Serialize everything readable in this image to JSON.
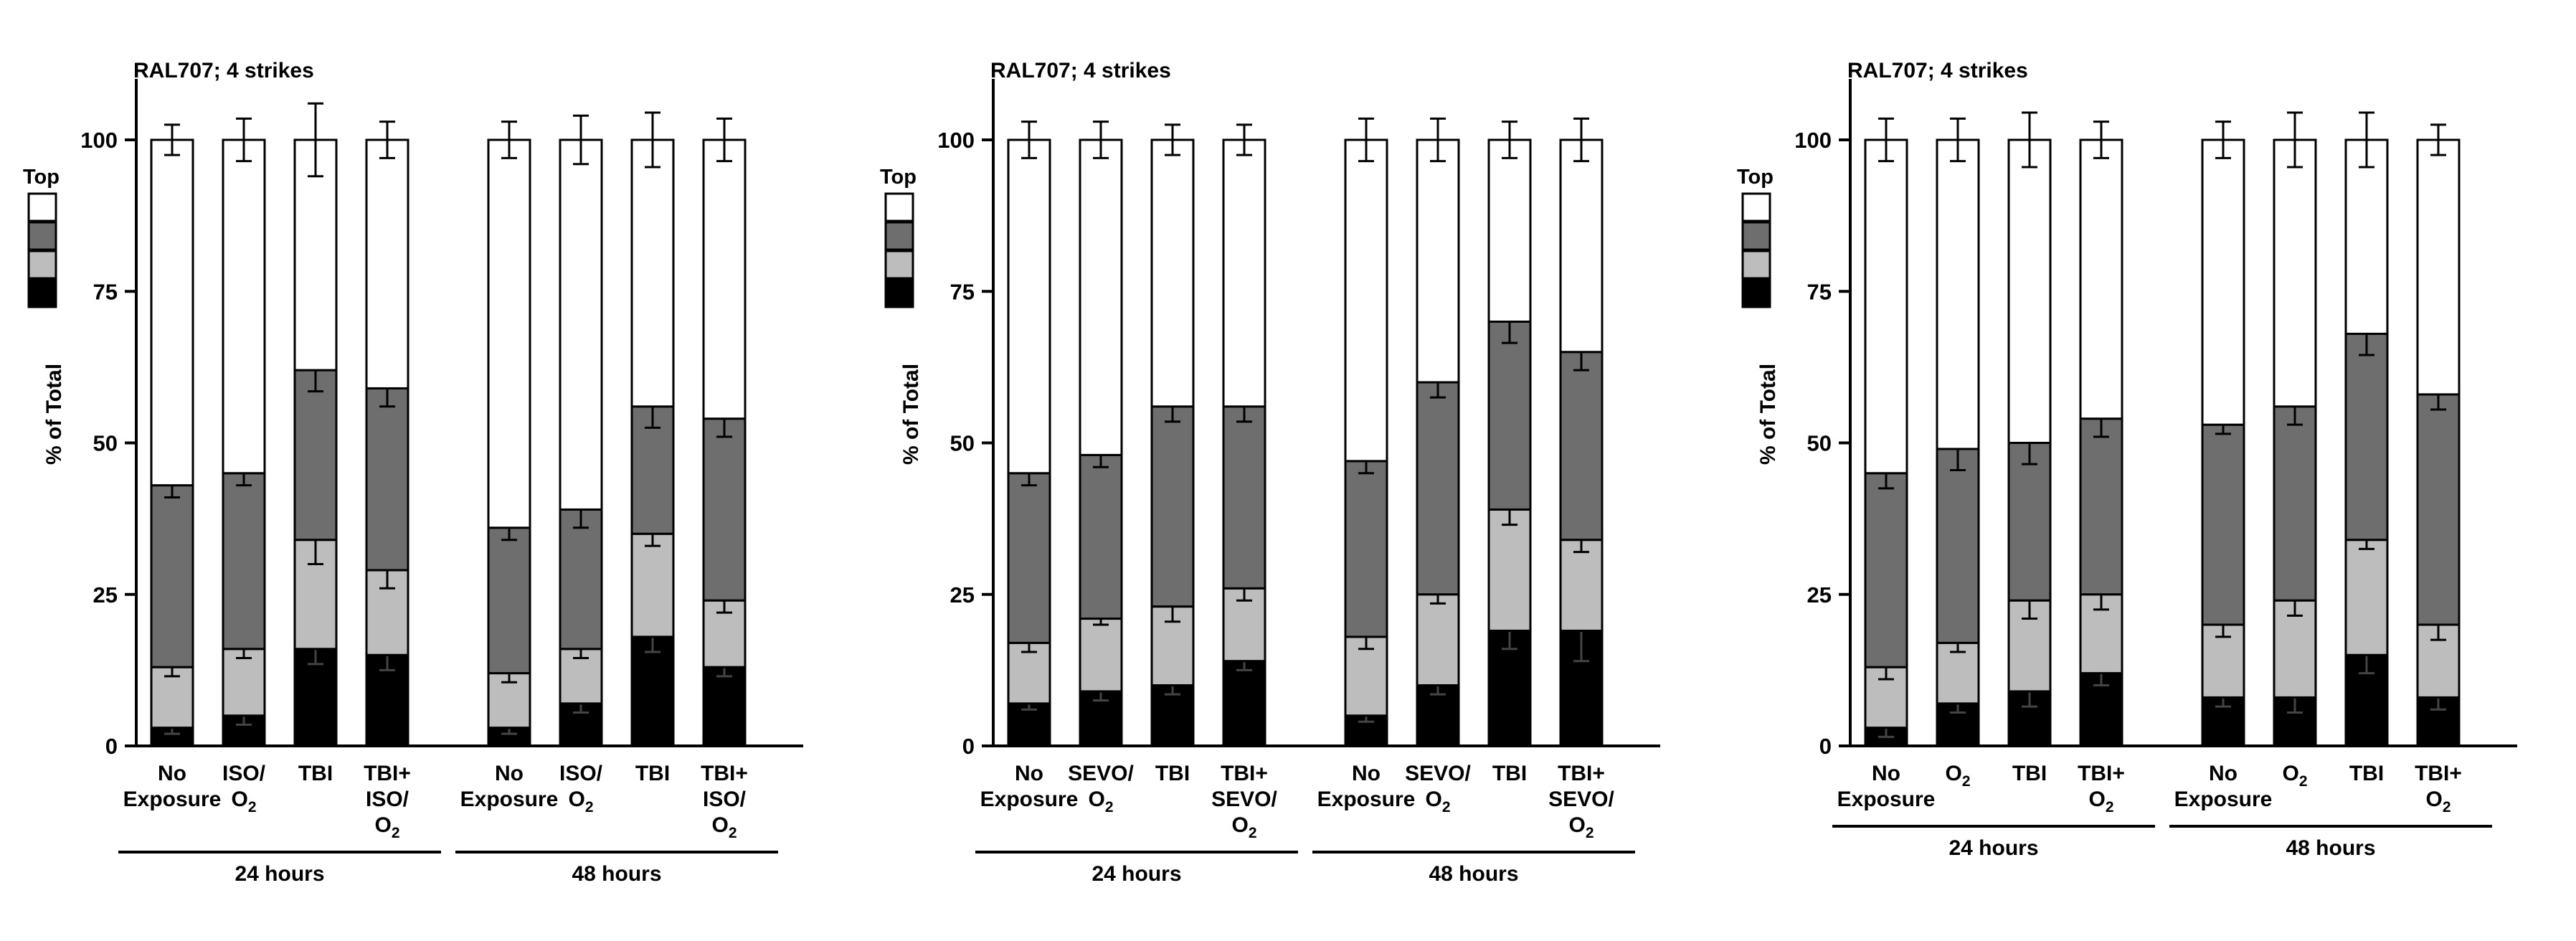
{
  "legend": {
    "title": "Top",
    "colors": [
      "#ffffff",
      "#6e6e6e",
      "#bdbdbd",
      "#000000"
    ]
  },
  "chart_data": [
    {
      "type": "bar",
      "stacked": true,
      "title": "RAL707; 4 strikes",
      "ylabel": "% of Total",
      "ylim": [
        0,
        100
      ],
      "yticks": [
        "0",
        "25",
        "50",
        "75",
        "100"
      ],
      "category_labels": [
        [
          "No",
          "Exposure"
        ],
        [
          "ISO/",
          "O₂"
        ],
        [
          "TBI"
        ],
        [
          "TBI+",
          "ISO/",
          "O₂"
        ],
        [
          "No",
          "Exposure"
        ],
        [
          "ISO/",
          "O₂"
        ],
        [
          "TBI"
        ],
        [
          "TBI+",
          "ISO/",
          "O₂"
        ]
      ],
      "groups": [
        {
          "label": "24 hours",
          "bars": [
            0,
            1,
            2,
            3
          ]
        },
        {
          "label": "48 hours",
          "bars": [
            4,
            5,
            6,
            7
          ]
        }
      ],
      "series": [
        {
          "color": "#000000",
          "values": [
            3,
            5,
            16,
            15,
            3,
            7,
            18,
            13
          ],
          "err": [
            1,
            1.5,
            2.5,
            2.5,
            1,
            1.5,
            2.5,
            1.5
          ]
        },
        {
          "color": "#bdbdbd",
          "values": [
            10,
            11,
            18,
            14,
            9,
            9,
            17,
            11
          ],
          "err": [
            1.5,
            1.5,
            4,
            3,
            1.5,
            1.5,
            2,
            2
          ]
        },
        {
          "color": "#6e6e6e",
          "values": [
            30,
            29,
            28,
            30,
            24,
            23,
            21,
            30
          ],
          "err": [
            2,
            2,
            3.5,
            3,
            2,
            3,
            3.5,
            3
          ]
        },
        {
          "color": "#ffffff",
          "values": [
            57,
            55,
            38,
            41,
            64,
            61,
            44,
            46
          ],
          "err": [
            2.5,
            3.5,
            6,
            3,
            3,
            4,
            4.5,
            3.5
          ]
        }
      ]
    },
    {
      "type": "bar",
      "stacked": true,
      "title": "RAL707; 4 strikes",
      "ylabel": "% of Total",
      "ylim": [
        0,
        100
      ],
      "yticks": [
        "0",
        "25",
        "50",
        "75",
        "100"
      ],
      "category_labels": [
        [
          "No",
          "Exposure"
        ],
        [
          "SEVO/",
          "O₂"
        ],
        [
          "TBI"
        ],
        [
          "TBI+",
          "SEVO/",
          "O₂"
        ],
        [
          "No",
          "Exposure"
        ],
        [
          "SEVO/",
          "O₂"
        ],
        [
          "TBI"
        ],
        [
          "TBI+",
          "SEVO/",
          "O₂"
        ]
      ],
      "groups": [
        {
          "label": "24 hours",
          "bars": [
            0,
            1,
            2,
            3
          ]
        },
        {
          "label": "48 hours",
          "bars": [
            4,
            5,
            6,
            7
          ]
        }
      ],
      "series": [
        {
          "color": "#000000",
          "values": [
            7,
            9,
            10,
            14,
            5,
            10,
            19,
            19
          ],
          "err": [
            1,
            1.5,
            1.5,
            1.5,
            1,
            1.5,
            3,
            5
          ]
        },
        {
          "color": "#bdbdbd",
          "values": [
            10,
            12,
            13,
            12,
            13,
            15,
            20,
            15
          ],
          "err": [
            1.5,
            1,
            2.5,
            2,
            2,
            1.5,
            2.5,
            2
          ]
        },
        {
          "color": "#6e6e6e",
          "values": [
            28,
            27,
            33,
            30,
            29,
            35,
            31,
            31
          ],
          "err": [
            2,
            2,
            2.5,
            2.5,
            2,
            2.5,
            3.5,
            3
          ]
        },
        {
          "color": "#ffffff",
          "values": [
            55,
            52,
            44,
            44,
            53,
            40,
            30,
            35
          ],
          "err": [
            3,
            3,
            2.5,
            2.5,
            3.5,
            3.5,
            3,
            3.5
          ]
        }
      ]
    },
    {
      "type": "bar",
      "stacked": true,
      "title": "RAL707; 4 strikes",
      "ylabel": "% of Total",
      "ylim": [
        0,
        100
      ],
      "yticks": [
        "0",
        "25",
        "50",
        "75",
        "100"
      ],
      "category_labels": [
        [
          "No",
          "Exposure"
        ],
        [
          "O₂"
        ],
        [
          "TBI"
        ],
        [
          "TBI+",
          "O₂"
        ],
        [
          "No",
          "Exposure"
        ],
        [
          "O₂"
        ],
        [
          "TBI"
        ],
        [
          "TBI+",
          "O₂"
        ]
      ],
      "groups": [
        {
          "label": "24 hours",
          "bars": [
            0,
            1,
            2,
            3
          ]
        },
        {
          "label": "48 hours",
          "bars": [
            4,
            5,
            6,
            7
          ]
        }
      ],
      "series": [
        {
          "color": "#000000",
          "values": [
            3,
            7,
            9,
            12,
            8,
            8,
            15,
            8
          ],
          "err": [
            1.5,
            1.5,
            2.5,
            2,
            1.5,
            2.5,
            3,
            2
          ]
        },
        {
          "color": "#bdbdbd",
          "values": [
            10,
            10,
            15,
            13,
            12,
            16,
            19,
            12
          ],
          "err": [
            2,
            1.5,
            3,
            2.5,
            2,
            2.5,
            1.5,
            2.5
          ]
        },
        {
          "color": "#6e6e6e",
          "values": [
            32,
            32,
            26,
            29,
            33,
            32,
            34,
            38
          ],
          "err": [
            2.5,
            3.5,
            3.5,
            3,
            1.5,
            3,
            3.5,
            2.5
          ]
        },
        {
          "color": "#ffffff",
          "values": [
            55,
            51,
            50,
            46,
            47,
            44,
            32,
            42
          ],
          "err": [
            3.5,
            3.5,
            4.5,
            3,
            3,
            4.5,
            4.5,
            2.5
          ]
        }
      ]
    }
  ]
}
